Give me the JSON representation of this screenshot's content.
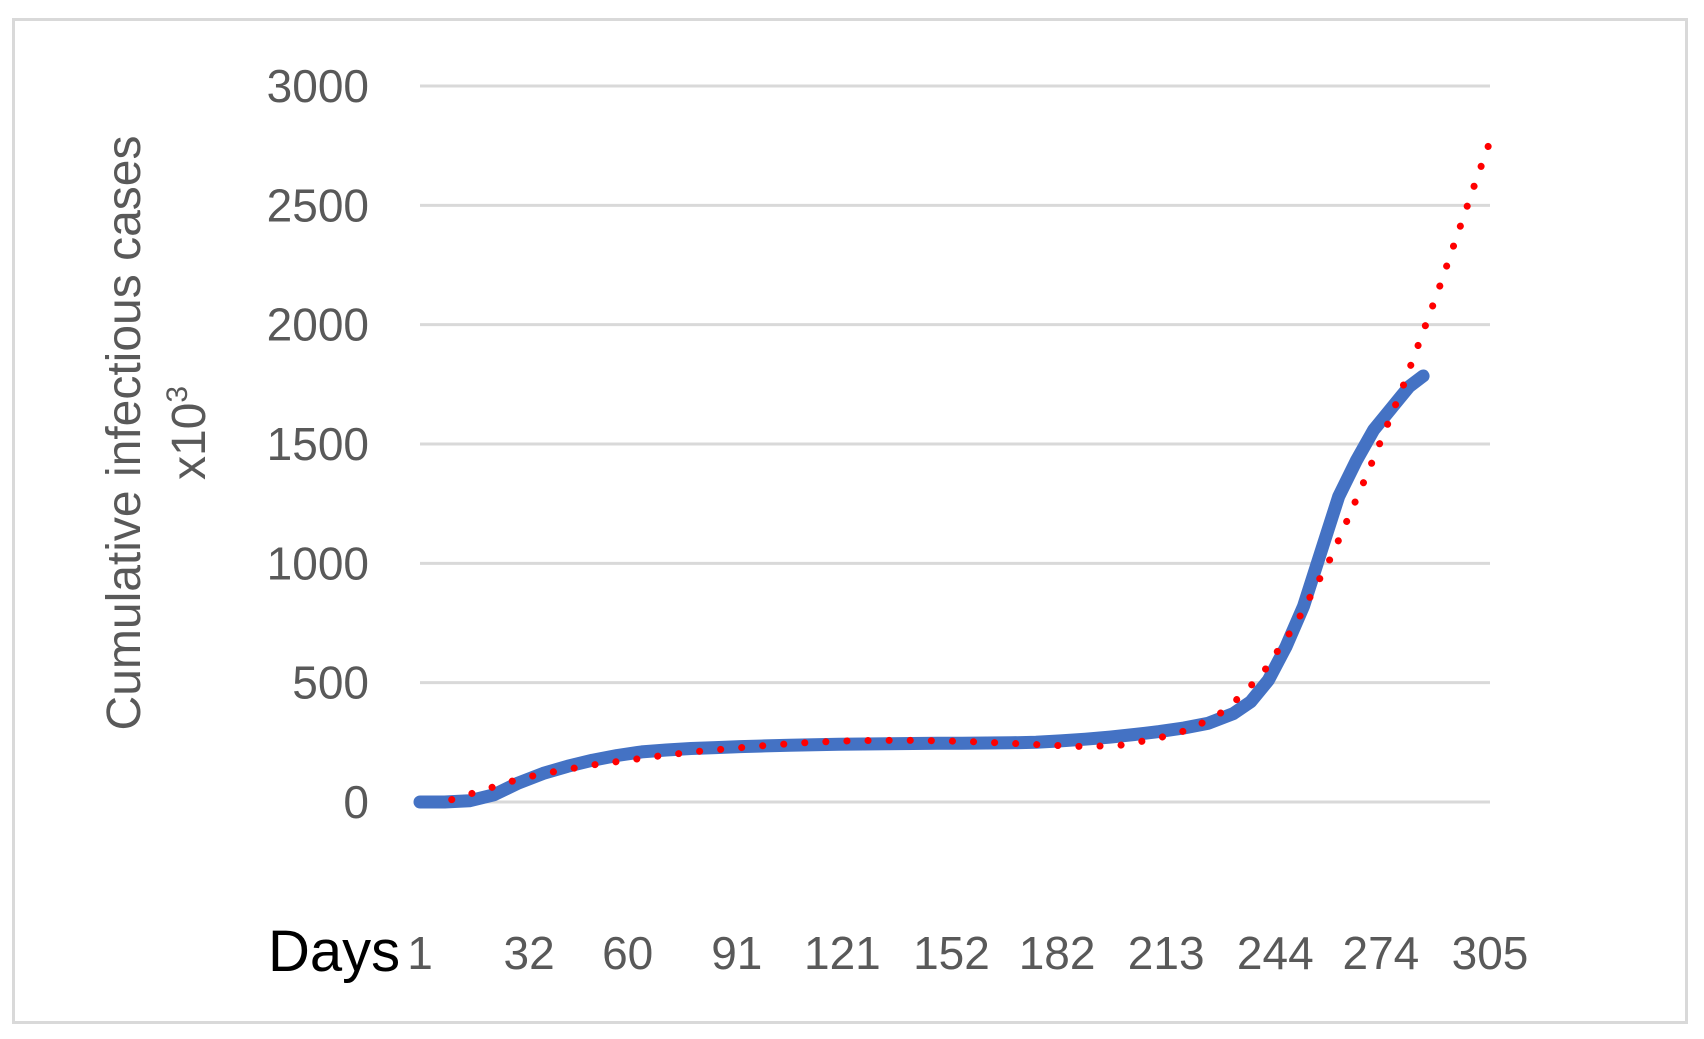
{
  "chart_data": {
    "type": "line",
    "xlabel": "Days",
    "ylabel_line1": "Cumulative infectious cases",
    "ylabel_line2_base": "x10",
    "ylabel_line2_sup": "3",
    "x_tick_labels": [
      "1",
      "32",
      "60",
      "91",
      "121",
      "152",
      "182",
      "213",
      "244",
      "274",
      "305"
    ],
    "x_tick_values": [
      1,
      32,
      60,
      91,
      121,
      152,
      182,
      213,
      244,
      274,
      305
    ],
    "xlim": [
      1,
      305
    ],
    "y_tick_labels": [
      "0",
      "500",
      "1000",
      "1500",
      "2000",
      "2500",
      "3000"
    ],
    "ylim": [
      0,
      3000
    ],
    "grid": "horizontal",
    "legend": "none",
    "series": [
      {
        "style": "solid-thick",
        "color": "#4472c4",
        "x": [
          1,
          8,
          15,
          22,
          29,
          36,
          43,
          50,
          57,
          64,
          71,
          78,
          85,
          92,
          99,
          106,
          113,
          120,
          127,
          134,
          141,
          148,
          155,
          162,
          169,
          176,
          183,
          190,
          197,
          204,
          211,
          218,
          225,
          232,
          237,
          242,
          247,
          252,
          257,
          262,
          267,
          272,
          277,
          282,
          286
        ],
        "y": [
          0,
          0,
          5,
          30,
          80,
          120,
          150,
          175,
          195,
          210,
          218,
          224,
          228,
          232,
          235,
          238,
          240,
          242,
          243,
          244,
          245,
          246,
          246,
          247,
          248,
          250,
          256,
          263,
          272,
          283,
          295,
          310,
          330,
          370,
          420,
          510,
          650,
          820,
          1050,
          1280,
          1430,
          1560,
          1650,
          1740,
          1785
        ]
      },
      {
        "style": "dotted",
        "color": "#ff0000",
        "x": [
          10,
          20,
          30,
          40,
          50,
          60,
          70,
          80,
          90,
          100,
          110,
          120,
          130,
          140,
          150,
          160,
          170,
          180,
          190,
          200,
          210,
          220,
          230,
          240,
          250,
          260,
          270,
          280,
          290,
          300,
          306
        ],
        "y": [
          10,
          55,
          100,
          130,
          155,
          175,
          195,
          212,
          225,
          238,
          248,
          255,
          258,
          258,
          256,
          252,
          245,
          238,
          232,
          238,
          265,
          305,
          385,
          530,
          750,
          1030,
          1370,
          1730,
          2130,
          2560,
          2810
        ]
      }
    ]
  }
}
